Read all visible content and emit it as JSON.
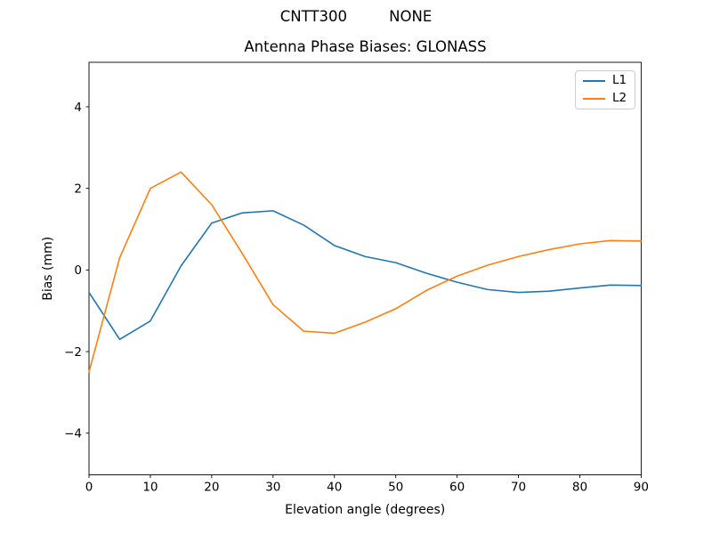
{
  "chart_data": {
    "type": "line",
    "suptitle": "CNTT300         NONE",
    "title": "Antenna Phase Biases: GLONASS",
    "xlabel": "Elevation angle (degrees)",
    "ylabel": "Bias (mm)",
    "xlim": [
      0,
      90
    ],
    "ylim": [
      -5.02,
      5.09
    ],
    "grid": false,
    "x_ticks": {
      "values": [
        0,
        10,
        20,
        30,
        40,
        50,
        60,
        70,
        80,
        90
      ],
      "labels": [
        "0",
        "10",
        "20",
        "30",
        "40",
        "50",
        "60",
        "70",
        "80",
        "90"
      ]
    },
    "y_ticks": {
      "values": [
        -4,
        -2,
        0,
        2,
        4
      ],
      "labels": [
        "−4",
        "−2",
        "0",
        "2",
        "4"
      ]
    },
    "x": [
      0,
      5,
      10,
      15,
      20,
      25,
      30,
      35,
      40,
      45,
      50,
      55,
      60,
      65,
      70,
      75,
      80,
      85,
      90
    ],
    "series": [
      {
        "name": "L1",
        "color": "#1f77b4",
        "values": [
          -0.55,
          -1.7,
          -1.25,
          0.1,
          1.15,
          1.4,
          1.45,
          1.1,
          0.6,
          0.33,
          0.18,
          -0.08,
          -0.3,
          -0.48,
          -0.55,
          -0.52,
          -0.44,
          -0.37,
          -0.38
        ]
      },
      {
        "name": "L2",
        "color": "#ff7f0e",
        "values": [
          -2.5,
          0.3,
          2.0,
          2.4,
          1.6,
          0.4,
          -0.85,
          -1.5,
          -1.55,
          -1.28,
          -0.95,
          -0.5,
          -0.15,
          0.12,
          0.33,
          0.5,
          0.64,
          0.72,
          0.71
        ]
      }
    ],
    "legend": {
      "position": "upper right",
      "entries": [
        "L1",
        "L2"
      ]
    }
  },
  "colors": {
    "background": "#ffffff",
    "text": "#000000",
    "spine": "#000000",
    "legend_border": "#cccccc"
  }
}
